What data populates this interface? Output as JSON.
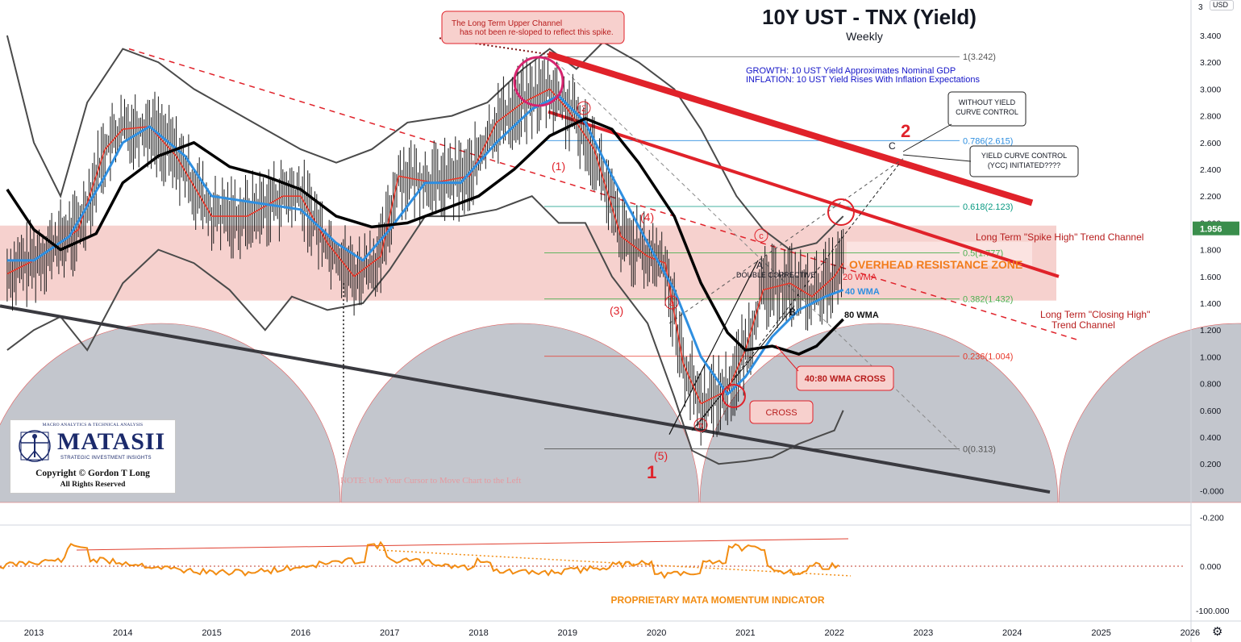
{
  "chart_data": {
    "type": "line",
    "title": "10Y UST - TNX (Yield)",
    "subtitle": "Weekly",
    "currency_label": "USD",
    "last_price_tag": "1.956",
    "ylim": [
      -0.25,
      3.5
    ],
    "y_ticks": [
      "3.400",
      "3.200",
      "3.000",
      "2.800",
      "2.600",
      "2.400",
      "2.200",
      "2.000",
      "1.800",
      "1.600",
      "1.400",
      "1.200",
      "1.000",
      "0.800",
      "0.600",
      "0.400",
      "0.200",
      "-0.000",
      "-0.200"
    ],
    "y_tick_values": [
      3.4,
      3.2,
      3.0,
      2.8,
      2.6,
      2.4,
      2.2,
      2.0,
      1.8,
      1.6,
      1.4,
      1.2,
      1.0,
      0.8,
      0.6,
      0.4,
      0.2,
      0.0,
      -0.2
    ],
    "top_corner_tick": "3",
    "lower_ticks": [
      "0.000",
      "-100.000"
    ],
    "x_ticks": [
      "2013",
      "2014",
      "2015",
      "2016",
      "2017",
      "2018",
      "2019",
      "2020",
      "2021",
      "2022",
      "2023",
      "2024",
      "2025",
      "2026"
    ],
    "x_tick_values": [
      2013,
      2014,
      2015,
      2016,
      2017,
      2018,
      2019,
      2020,
      2021,
      2022,
      2023,
      2024,
      2025,
      2026
    ],
    "xlim": [
      2012.65,
      2026.2
    ],
    "series": [
      {
        "name": "20 WMA",
        "color": "#e8392b",
        "points": [
          [
            2012.7,
            1.62
          ],
          [
            2013.0,
            1.72
          ],
          [
            2013.5,
            1.95
          ],
          [
            2013.8,
            2.55
          ],
          [
            2014.0,
            2.7
          ],
          [
            2014.3,
            2.72
          ],
          [
            2014.6,
            2.5
          ],
          [
            2015.0,
            2.05
          ],
          [
            2015.4,
            2.05
          ],
          [
            2015.8,
            2.2
          ],
          [
            2016.0,
            2.2
          ],
          [
            2016.3,
            1.85
          ],
          [
            2016.6,
            1.6
          ],
          [
            2016.9,
            1.75
          ],
          [
            2017.1,
            2.35
          ],
          [
            2017.5,
            2.3
          ],
          [
            2017.9,
            2.35
          ],
          [
            2018.2,
            2.75
          ],
          [
            2018.5,
            2.9
          ],
          [
            2018.8,
            3.0
          ],
          [
            2019.0,
            2.85
          ],
          [
            2019.3,
            2.55
          ],
          [
            2019.6,
            1.9
          ],
          [
            2019.9,
            1.75
          ],
          [
            2020.1,
            1.7
          ],
          [
            2020.3,
            0.95
          ],
          [
            2020.5,
            0.65
          ],
          [
            2020.8,
            0.75
          ],
          [
            2021.0,
            1.05
          ],
          [
            2021.2,
            1.5
          ],
          [
            2021.5,
            1.55
          ],
          [
            2021.75,
            1.45
          ],
          [
            2022.0,
            1.6
          ],
          [
            2022.1,
            1.7
          ]
        ]
      },
      {
        "name": "40 WMA",
        "color": "#2f8fe0",
        "points": [
          [
            2012.7,
            1.72
          ],
          [
            2013.0,
            1.72
          ],
          [
            2013.4,
            1.9
          ],
          [
            2013.8,
            2.35
          ],
          [
            2014.0,
            2.6
          ],
          [
            2014.3,
            2.72
          ],
          [
            2014.7,
            2.5
          ],
          [
            2015.0,
            2.2
          ],
          [
            2015.5,
            2.15
          ],
          [
            2016.0,
            2.1
          ],
          [
            2016.4,
            1.85
          ],
          [
            2016.7,
            1.72
          ],
          [
            2017.0,
            1.95
          ],
          [
            2017.4,
            2.3
          ],
          [
            2017.8,
            2.3
          ],
          [
            2018.2,
            2.6
          ],
          [
            2018.6,
            2.85
          ],
          [
            2018.9,
            2.95
          ],
          [
            2019.2,
            2.75
          ],
          [
            2019.5,
            2.35
          ],
          [
            2019.9,
            1.85
          ],
          [
            2020.2,
            1.5
          ],
          [
            2020.5,
            1.0
          ],
          [
            2020.8,
            0.72
          ],
          [
            2021.0,
            0.85
          ],
          [
            2021.3,
            1.15
          ],
          [
            2021.6,
            1.35
          ],
          [
            2021.9,
            1.45
          ],
          [
            2022.1,
            1.5
          ]
        ]
      },
      {
        "name": "80 WMA",
        "color": "#000000",
        "points": [
          [
            2012.7,
            2.25
          ],
          [
            2013.0,
            1.95
          ],
          [
            2013.3,
            1.8
          ],
          [
            2013.7,
            1.92
          ],
          [
            2014.0,
            2.3
          ],
          [
            2014.4,
            2.5
          ],
          [
            2014.8,
            2.6
          ],
          [
            2015.2,
            2.42
          ],
          [
            2015.6,
            2.35
          ],
          [
            2016.0,
            2.25
          ],
          [
            2016.4,
            2.05
          ],
          [
            2016.8,
            1.97
          ],
          [
            2017.2,
            2.0
          ],
          [
            2017.6,
            2.1
          ],
          [
            2018.0,
            2.2
          ],
          [
            2018.4,
            2.4
          ],
          [
            2018.8,
            2.65
          ],
          [
            2019.2,
            2.78
          ],
          [
            2019.5,
            2.7
          ],
          [
            2019.8,
            2.45
          ],
          [
            2020.2,
            2.05
          ],
          [
            2020.5,
            1.55
          ],
          [
            2020.8,
            1.18
          ],
          [
            2021.0,
            1.05
          ],
          [
            2021.3,
            1.08
          ],
          [
            2021.6,
            1.02
          ],
          [
            2021.8,
            1.08
          ],
          [
            2022.1,
            1.28
          ]
        ]
      }
    ],
    "fib_levels": [
      {
        "label": "1(3.242)",
        "value": 3.242,
        "color": "#555555"
      },
      {
        "label": "0.786(2.615)",
        "value": 2.615,
        "color": "#2f8fe0"
      },
      {
        "label": "0.618(2.123)",
        "value": 2.123,
        "color": "#089981"
      },
      {
        "label": "0.5(1.777)",
        "value": 1.777,
        "color": "#4caf50"
      },
      {
        "label": "0.382(1.432)",
        "value": 1.432,
        "color": "#4caf50"
      },
      {
        "label": "0.236(1.004)",
        "value": 1.004,
        "color": "#e8392b"
      },
      {
        "label": "0(0.313)",
        "value": 0.313,
        "color": "#555555"
      }
    ],
    "annotations": {
      "growth": "GROWTH: 10 UST Yield Approximates Nominal GDP",
      "inflation": "INFLATION: 10 UST Yield Rises With Inflation Expectations",
      "upper_channel_note": [
        "The Long Term Upper Channel",
        "has not been re-sloped to reflect this spike."
      ],
      "without_ycc": [
        "WITHOUT YIELD",
        "CURVE CONTROL"
      ],
      "ycc": [
        "YIELD CURVE CONTROL",
        "(YCC) INITIATED????"
      ],
      "spike_high_channel": "Long Term \"Spike High\" Trend Channel",
      "closing_high_channel": [
        "Long Term \"Closing High\"",
        "Trend Channel"
      ],
      "resistance_zone": "OVERHEAD RESISTANCE ZONE",
      "wma20": "20 WMA",
      "wma40": "40 WMA",
      "wma80": "80 WMA",
      "double_corrective": "DOUBLE CORRECTIVE",
      "cross_4080": "40:80 WMA CROSS",
      "cross": "CROSS",
      "note": "NOTE: Use Your Cursor to Move Chart to the Left",
      "momentum": "PROPRIETARY MATA MOMENTUM INDICATOR",
      "wave_1": "(1)",
      "wave_3": "(3)",
      "wave_4": "(4)",
      "wave_5": "(5)",
      "wave_big_1": "1",
      "wave_big_2": "2",
      "label_a_circ": "a",
      "label_b_circ": "b",
      "label_c_circ": "c",
      "label_A": "A",
      "label_B": "B",
      "label_C": "C"
    }
  },
  "logo": {
    "top_line": "MACRO ANALYTICS & TECHNICAL ANALYSIS",
    "name": "MATASII",
    "tagline": "STRATEGIC INVESTMENT INSIGHTS",
    "copyright": "Copyright © Gordon T Long",
    "rights": "All Rights Reserved"
  },
  "colors": {
    "resistance_zone": "#f5c9c6",
    "cycle_arc": "#b9bcc4",
    "channel_red": "#e0222a",
    "momentum": "#f28c12"
  }
}
